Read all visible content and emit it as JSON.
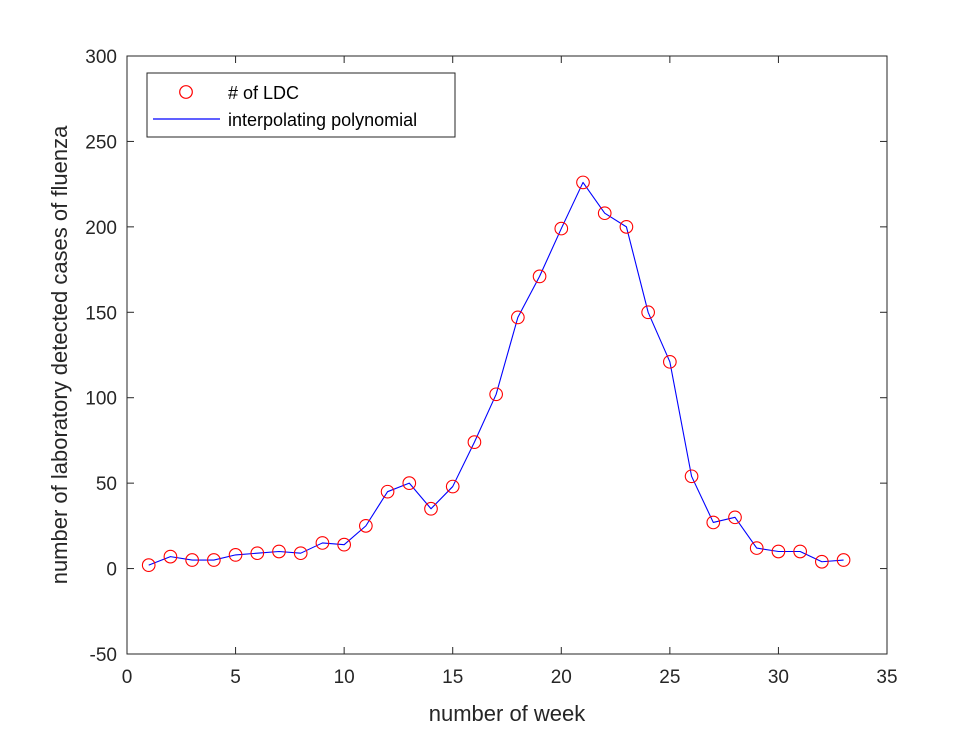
{
  "chart_data": {
    "type": "line",
    "xlabel": "number of week",
    "ylabel": "number of laboratory detected cases of fluenza",
    "xlim": [
      0,
      35
    ],
    "ylim": [
      -50,
      300
    ],
    "xticks": [
      0,
      5,
      10,
      15,
      20,
      25,
      30,
      35
    ],
    "yticks": [
      -50,
      0,
      50,
      100,
      150,
      200,
      250,
      300
    ],
    "grid": false,
    "legend_position": "top-left",
    "legend": {
      "markers_label": "# of LDC",
      "line_label": "interpolating polynomial"
    },
    "colors": {
      "markers": "#ff0000",
      "line": "#0000ff",
      "axes": "#262626"
    },
    "x": [
      1,
      2,
      3,
      4,
      5,
      6,
      7,
      8,
      9,
      10,
      11,
      12,
      13,
      14,
      15,
      16,
      17,
      18,
      19,
      20,
      21,
      22,
      23,
      24,
      25,
      26,
      27,
      28,
      29,
      30,
      31,
      32,
      33
    ],
    "series": [
      {
        "name": "# of LDC",
        "kind": "markers",
        "values": [
          2,
          7,
          5,
          5,
          8,
          9,
          10,
          9,
          15,
          14,
          25,
          45,
          50,
          35,
          48,
          74,
          102,
          147,
          171,
          199,
          226,
          208,
          200,
          150,
          121,
          54,
          27,
          30,
          12,
          10,
          10,
          4,
          5
        ]
      },
      {
        "name": "interpolating polynomial",
        "kind": "line",
        "values": [
          2,
          7,
          5,
          5,
          8,
          9,
          10,
          9,
          15,
          14,
          25,
          45,
          50,
          35,
          48,
          74,
          102,
          147,
          171,
          199,
          226,
          208,
          200,
          150,
          121,
          54,
          27,
          30,
          12,
          10,
          10,
          4,
          5
        ]
      }
    ]
  }
}
